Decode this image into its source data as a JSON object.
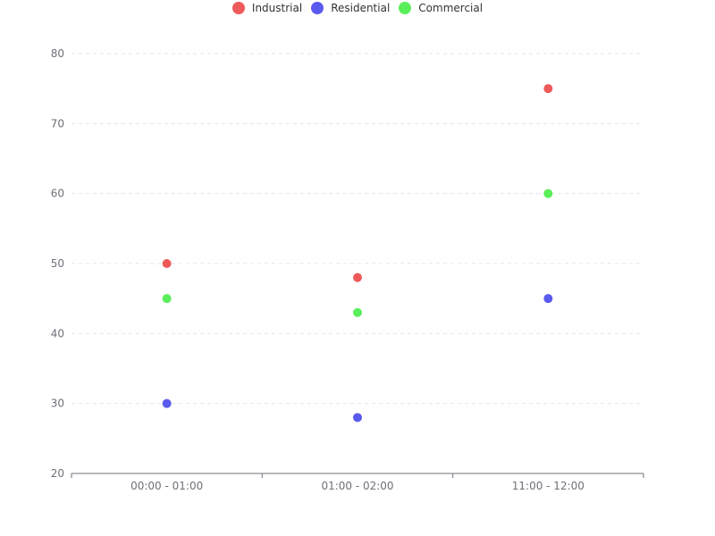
{
  "chart_data": {
    "type": "scatter",
    "categories": [
      "00:00 - 01:00",
      "01:00 - 02:00",
      "11:00 - 12:00"
    ],
    "series": [
      {
        "name": "Industrial",
        "color": "#ee5a5a",
        "values": [
          50,
          48,
          75
        ]
      },
      {
        "name": "Residential",
        "color": "#5a5aee",
        "values": [
          30,
          28,
          45
        ]
      },
      {
        "name": "Commercial",
        "color": "#5aee5a",
        "values": [
          45,
          43,
          60
        ]
      }
    ],
    "yticks": [
      "20",
      "30",
      "40",
      "50",
      "60",
      "70",
      "80"
    ],
    "ylim": [
      20,
      80
    ],
    "grid": true,
    "legend_position": "top-center"
  }
}
